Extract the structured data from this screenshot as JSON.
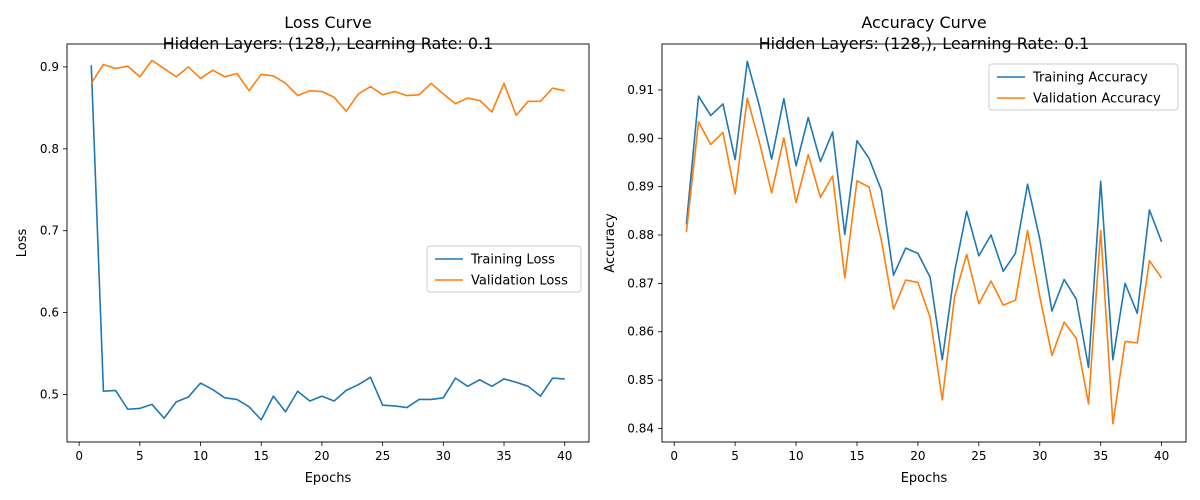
{
  "chart_data": [
    {
      "type": "line",
      "title": "Loss Curve",
      "subtitle": "Hidden Layers: (128,), Learning Rate: 0.1",
      "xlabel": "Epochs",
      "ylabel": "Loss",
      "xlim": [
        -1,
        42
      ],
      "ylim": [
        0.442,
        0.928
      ],
      "xticks": [
        0,
        5,
        10,
        15,
        20,
        25,
        30,
        35,
        40
      ],
      "yticks": [
        0.5,
        0.6,
        0.7,
        0.8,
        0.9
      ],
      "grid": false,
      "legend_position": "center-right",
      "x": [
        1,
        2,
        3,
        4,
        5,
        6,
        7,
        8,
        9,
        10,
        11,
        12,
        13,
        14,
        15,
        16,
        17,
        18,
        19,
        20,
        21,
        22,
        23,
        24,
        25,
        26,
        27,
        28,
        29,
        30,
        31,
        32,
        33,
        34,
        35,
        36,
        37,
        38,
        39,
        40
      ],
      "series": [
        {
          "name": "Training Loss",
          "color": "#1f77b4",
          "values": [
            0.902,
            0.504,
            0.505,
            0.482,
            0.483,
            0.488,
            0.471,
            0.491,
            0.497,
            0.514,
            0.506,
            0.496,
            0.494,
            0.485,
            0.469,
            0.498,
            0.479,
            0.504,
            0.492,
            0.498,
            0.492,
            0.505,
            0.512,
            0.521,
            0.487,
            0.486,
            0.484,
            0.494,
            0.494,
            0.496,
            0.52,
            0.51,
            0.518,
            0.51,
            0.519,
            0.515,
            0.51,
            0.498,
            0.52,
            0.519
          ]
        },
        {
          "name": "Validation Loss",
          "color": "#ff7f0e",
          "values": [
            0.88,
            0.903,
            0.898,
            0.901,
            0.888,
            0.908,
            0.898,
            0.888,
            0.9,
            0.886,
            0.896,
            0.888,
            0.892,
            0.871,
            0.891,
            0.889,
            0.88,
            0.865,
            0.871,
            0.87,
            0.863,
            0.846,
            0.867,
            0.876,
            0.866,
            0.87,
            0.865,
            0.866,
            0.88,
            0.867,
            0.855,
            0.862,
            0.859,
            0.845,
            0.88,
            0.841,
            0.858,
            0.858,
            0.874,
            0.871
          ]
        }
      ]
    },
    {
      "type": "line",
      "title": "Accuracy Curve",
      "subtitle": "Hidden Layers: (128,), Learning Rate: 0.1",
      "xlabel": "Epochs",
      "ylabel": "Accuracy",
      "xlim": [
        -1,
        42
      ],
      "ylim": [
        0.8372,
        0.9195
      ],
      "xticks": [
        0,
        5,
        10,
        15,
        20,
        25,
        30,
        35,
        40
      ],
      "yticks": [
        0.84,
        0.85,
        0.86,
        0.87,
        0.88,
        0.89,
        0.9,
        0.91
      ],
      "ytick_labels": [
        "0.84",
        "0.85",
        "0.86",
        "0.87",
        "0.88",
        "0.89",
        "0.90",
        "0.91"
      ],
      "grid": false,
      "legend_position": "top-right",
      "x": [
        1,
        2,
        3,
        4,
        5,
        6,
        7,
        8,
        9,
        10,
        11,
        12,
        13,
        14,
        15,
        16,
        17,
        18,
        19,
        20,
        21,
        22,
        23,
        24,
        25,
        26,
        27,
        28,
        29,
        30,
        31,
        32,
        33,
        34,
        35,
        36,
        37,
        38,
        39,
        40
      ],
      "series": [
        {
          "name": "Training Accuracy",
          "color": "#1f77b4",
          "values": [
            0.8822,
            0.9087,
            0.9047,
            0.9071,
            0.8956,
            0.9159,
            0.9066,
            0.8957,
            0.9082,
            0.8943,
            0.9043,
            0.8952,
            0.9013,
            0.8801,
            0.8995,
            0.8958,
            0.8893,
            0.8717,
            0.8773,
            0.8762,
            0.8713,
            0.8542,
            0.8723,
            0.8849,
            0.8757,
            0.88,
            0.8725,
            0.8762,
            0.8905,
            0.8792,
            0.8643,
            0.8708,
            0.8667,
            0.8526,
            0.8911,
            0.8542,
            0.87,
            0.8638,
            0.8852,
            0.8786
          ]
        },
        {
          "name": "Validation Accuracy",
          "color": "#ff7f0e",
          "values": [
            0.8806,
            0.9034,
            0.8987,
            0.9012,
            0.8885,
            0.9083,
            0.8991,
            0.8887,
            0.9001,
            0.8867,
            0.8966,
            0.8878,
            0.8922,
            0.8711,
            0.8912,
            0.8899,
            0.8789,
            0.8647,
            0.8707,
            0.8702,
            0.863,
            0.8459,
            0.8671,
            0.876,
            0.8658,
            0.8705,
            0.8655,
            0.8665,
            0.8809,
            0.8673,
            0.8551,
            0.862,
            0.8586,
            0.8451,
            0.8809,
            0.841,
            0.858,
            0.8577,
            0.8747,
            0.8711
          ]
        }
      ]
    }
  ]
}
